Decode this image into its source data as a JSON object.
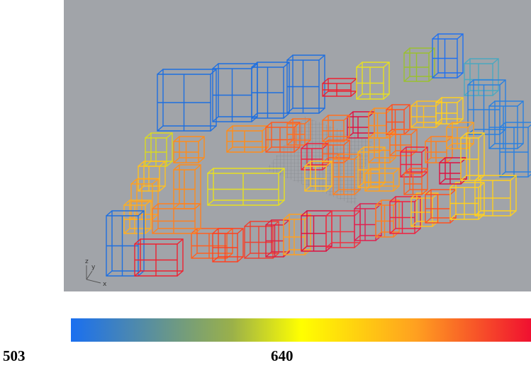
{
  "viewport": {
    "axes": {
      "z": "z",
      "y": "y",
      "x": "x"
    }
  },
  "legend": {
    "min": 503,
    "mid": 640
  }
}
